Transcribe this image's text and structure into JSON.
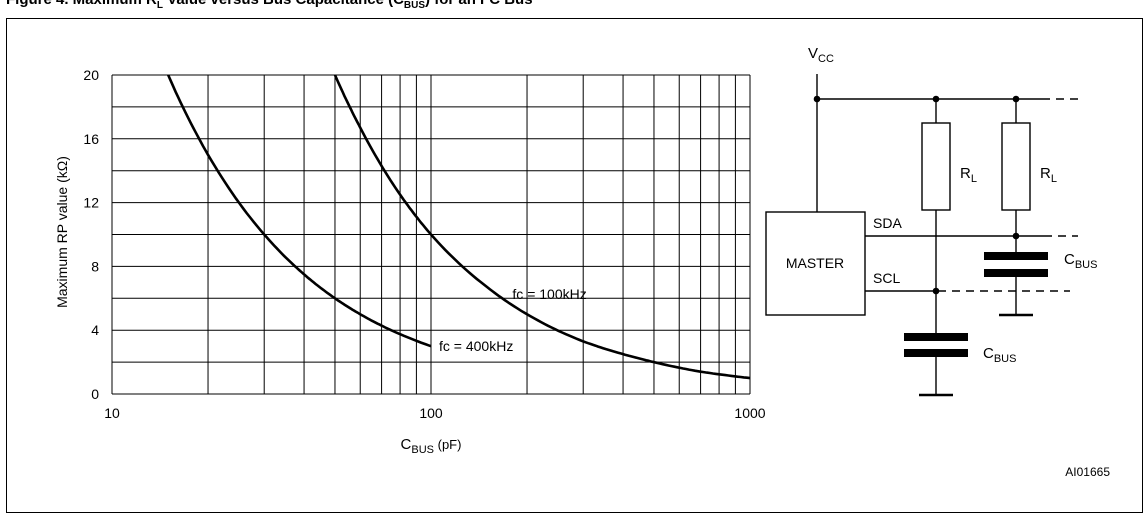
{
  "figure": {
    "title_prefix": "Figure 4. Maximum R",
    "title_sub1": "L",
    "title_mid": " Value versus Bus Capacitance (C",
    "title_sub2": "BUS",
    "title_suffix": ") for an I²C Bus",
    "ref_code": "AI01665"
  },
  "chart_data": {
    "type": "line",
    "x_scale": "log",
    "xlim": [
      10,
      1000
    ],
    "ylim": [
      0,
      20
    ],
    "grid": true,
    "x_ticks": [
      "10",
      "100",
      "1000"
    ],
    "y_ticks": [
      "0",
      "4",
      "8",
      "12",
      "16",
      "20"
    ],
    "xlabel_main": "C",
    "xlabel_sub": "BUS",
    "xlabel_unit": " (pF)",
    "ylabel": "Maximum RP value (kΩ)",
    "series": [
      {
        "name": "fc = 400kHz",
        "points": [
          [
            15,
            20
          ],
          [
            20,
            15
          ],
          [
            30,
            10
          ],
          [
            40,
            7.5
          ],
          [
            50,
            6
          ],
          [
            60,
            5
          ],
          [
            75,
            4
          ],
          [
            100,
            3
          ]
        ]
      },
      {
        "name": "fc = 100kHz",
        "points": [
          [
            50,
            20
          ],
          [
            60,
            16.7
          ],
          [
            80,
            12.5
          ],
          [
            100,
            10
          ],
          [
            150,
            6.7
          ],
          [
            200,
            5
          ],
          [
            300,
            3.3
          ],
          [
            400,
            2.5
          ],
          [
            500,
            2
          ],
          [
            700,
            1.4
          ],
          [
            1000,
            1
          ]
        ]
      }
    ]
  },
  "circuit": {
    "vcc_main": "V",
    "vcc_sub": "CC",
    "master_label": "MASTER",
    "sda_label": "SDA",
    "scl_label": "SCL",
    "r1_main": "R",
    "r1_sub": "L",
    "r2_main": "R",
    "r2_sub": "L",
    "c1_main": "C",
    "c1_sub": "BUS",
    "c2_main": "C",
    "c2_sub": "BUS"
  }
}
